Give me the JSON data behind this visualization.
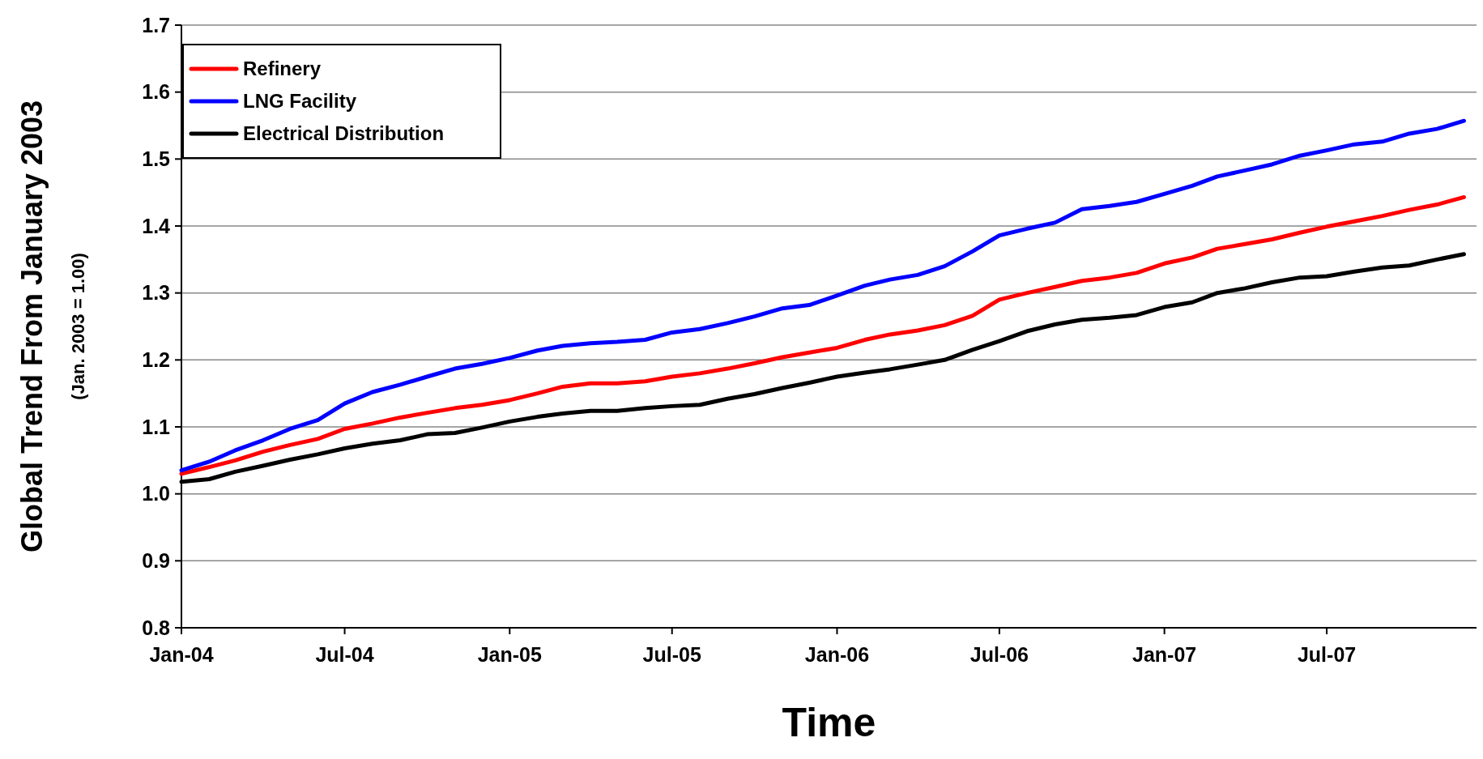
{
  "chart_data": {
    "type": "line",
    "xlabel": "Time",
    "ylabel": "Global Trend From January 2003",
    "annotations": [
      "(Jan. 2003 = 1.00)"
    ],
    "x": [
      "2004-01",
      "2004-02",
      "2004-03",
      "2004-04",
      "2004-05",
      "2004-06",
      "2004-07",
      "2004-08",
      "2004-09",
      "2004-10",
      "2004-11",
      "2004-12",
      "2005-01",
      "2005-02",
      "2005-03",
      "2005-04",
      "2005-05",
      "2005-06",
      "2005-07",
      "2005-08",
      "2005-09",
      "2005-10",
      "2005-11",
      "2005-12",
      "2006-01",
      "2006-02",
      "2006-03",
      "2006-04",
      "2006-05",
      "2006-06",
      "2006-07",
      "2006-08",
      "2006-09",
      "2006-10",
      "2006-11",
      "2006-12",
      "2007-01",
      "2007-02",
      "2007-03",
      "2007-04",
      "2007-05",
      "2007-06",
      "2007-07",
      "2007-08",
      "2007-09",
      "2007-10",
      "2007-11",
      "2007-12"
    ],
    "series": [
      {
        "name": "Refinery",
        "color": "#ff0000",
        "values": [
          1.03,
          1.04,
          1.05,
          1.063,
          1.073,
          1.082,
          1.097,
          1.105,
          1.114,
          1.121,
          1.128,
          1.133,
          1.14,
          1.15,
          1.16,
          1.165,
          1.165,
          1.168,
          1.175,
          1.18,
          1.187,
          1.195,
          1.204,
          1.211,
          1.218,
          1.23,
          1.238,
          1.244,
          1.252,
          1.266,
          1.29,
          1.3,
          1.309,
          1.318,
          1.323,
          1.33,
          1.344,
          1.353,
          1.366,
          1.373,
          1.38,
          1.39,
          1.399,
          1.407,
          1.415,
          1.424,
          1.432,
          1.443
        ]
      },
      {
        "name": "LNG Facility",
        "color": "#0000ff",
        "values": [
          1.035,
          1.048,
          1.065,
          1.08,
          1.097,
          1.11,
          1.135,
          1.152,
          1.163,
          1.175,
          1.187,
          1.194,
          1.203,
          1.214,
          1.221,
          1.225,
          1.227,
          1.23,
          1.241,
          1.246,
          1.255,
          1.265,
          1.277,
          1.282,
          1.296,
          1.311,
          1.32,
          1.327,
          1.34,
          1.362,
          1.386,
          1.396,
          1.405,
          1.425,
          1.43,
          1.436,
          1.448,
          1.46,
          1.474,
          1.483,
          1.492,
          1.505,
          1.513,
          1.522,
          1.526,
          1.538,
          1.545,
          1.557
        ]
      },
      {
        "name": "Electrical Distribution",
        "color": "#000000",
        "values": [
          1.018,
          1.022,
          1.033,
          1.042,
          1.051,
          1.059,
          1.068,
          1.075,
          1.08,
          1.089,
          1.091,
          1.099,
          1.108,
          1.115,
          1.12,
          1.124,
          1.124,
          1.128,
          1.131,
          1.133,
          1.142,
          1.149,
          1.158,
          1.166,
          1.175,
          1.181,
          1.186,
          1.193,
          1.2,
          1.215,
          1.228,
          1.243,
          1.253,
          1.26,
          1.263,
          1.267,
          1.279,
          1.286,
          1.3,
          1.307,
          1.316,
          1.323,
          1.325,
          1.332,
          1.338,
          1.341,
          1.35,
          1.358
        ]
      }
    ],
    "xlim": [
      "2004-01-01",
      "2007-12-15"
    ],
    "xticks": [
      {
        "value": "2004-01",
        "label": "Jan-04"
      },
      {
        "value": "2004-07",
        "label": "Jul-04"
      },
      {
        "value": "2005-01",
        "label": "Jan-05"
      },
      {
        "value": "2005-07",
        "label": "Jul-05"
      },
      {
        "value": "2006-01",
        "label": "Jan-06"
      },
      {
        "value": "2006-07",
        "label": "Jul-06"
      },
      {
        "value": "2007-01",
        "label": "Jan-07"
      },
      {
        "value": "2007-07",
        "label": "Jul-07"
      }
    ],
    "ylim": [
      0.8,
      1.7
    ],
    "yticks": [
      {
        "value": 0.8,
        "label": "0.8"
      },
      {
        "value": 0.9,
        "label": "0.9"
      },
      {
        "value": 1.0,
        "label": "1.0"
      },
      {
        "value": 1.1,
        "label": "1.1"
      },
      {
        "value": 1.2,
        "label": "1.2"
      },
      {
        "value": 1.3,
        "label": "1.3"
      },
      {
        "value": 1.4,
        "label": "1.4"
      },
      {
        "value": 1.5,
        "label": "1.5"
      },
      {
        "value": 1.6,
        "label": "1.6"
      },
      {
        "value": 1.7,
        "label": "1.7"
      }
    ],
    "grid": "y",
    "legend": "top left",
    "marker": "none",
    "line_style": "solid"
  }
}
